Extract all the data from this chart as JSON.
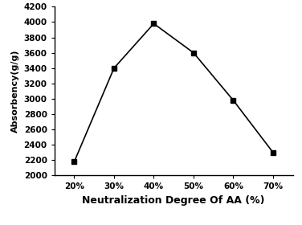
{
  "x": [
    20,
    30,
    40,
    50,
    60,
    70
  ],
  "y": [
    2180,
    3400,
    3980,
    3600,
    2980,
    2300
  ],
  "x_tick_labels": [
    "20%",
    "30%",
    "40%",
    "50%",
    "60%",
    "70%"
  ],
  "xlabel": "Neutralization Degree Of AA (%)",
  "ylabel": "Absorbency(g/g)",
  "ylim": [
    2000,
    4200
  ],
  "yticks": [
    2000,
    2200,
    2400,
    2600,
    2800,
    3000,
    3200,
    3400,
    3600,
    3800,
    4000,
    4200
  ],
  "line_color": "#000000",
  "marker": "s",
  "marker_size": 5,
  "marker_color": "#000000",
  "line_width": 1.2,
  "background_color": "#ffffff",
  "xlabel_fontsize": 9,
  "ylabel_fontsize": 8,
  "tick_fontsize": 7.5,
  "xlabel_fontweight": "bold",
  "ylabel_fontweight": "bold",
  "tick_fontweight": "bold"
}
